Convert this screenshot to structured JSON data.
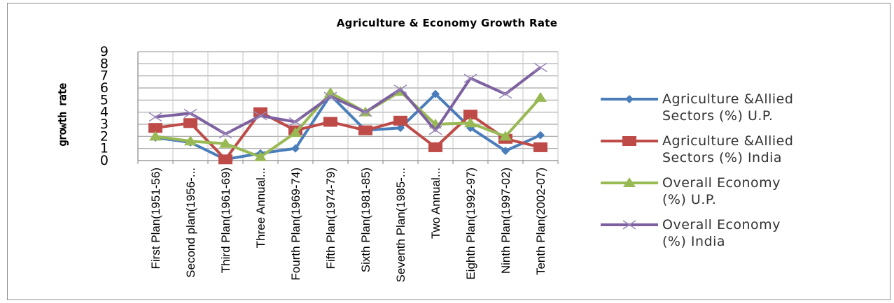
{
  "chart_data": {
    "type": "line",
    "title": "Agriculture & Economy Growth Rate",
    "ylabel": "growth rate",
    "xlabel": "",
    "ylim": [
      0,
      9
    ],
    "yticks": [
      0,
      1,
      2,
      3,
      4,
      5,
      6,
      7,
      8,
      9
    ],
    "grid": true,
    "legend_position": "right",
    "categories": [
      "First Plan(1951-56)",
      "Second plan(1956-...",
      "Third Plan(1961-69)",
      "Three Annual...",
      "Fourth Plan(1969-74)",
      "Fifth Plan(1974-79)",
      "Sixth Plan(1981-85)",
      "Seventh Plan(1985-...",
      "Two Annual...",
      "Eighth Plan(1992-97)",
      "Ninth Plan(1997-02)",
      "Tenth Plan(2002-07)"
    ],
    "series": [
      {
        "name": "Agriculture &Allied Sectors (%) U.P.",
        "legend_lines": [
          "Agriculture &Allied",
          "Sectors (%) U.P."
        ],
        "color": "#4a7ebb",
        "marker": "diamond",
        "values": [
          1.9,
          1.5,
          0.1,
          0.6,
          1.0,
          5.4,
          2.5,
          2.7,
          5.5,
          2.7,
          0.8,
          2.1
        ]
      },
      {
        "name": "Agriculture &Allied Sectors (%) India",
        "legend_lines": [
          "Agriculture &Allied",
          "Sectors (%) India"
        ],
        "color": "#be4b48",
        "marker": "square",
        "values": [
          2.7,
          3.1,
          0.1,
          4.0,
          2.5,
          3.2,
          2.5,
          3.3,
          1.1,
          3.8,
          1.8,
          1.1
        ]
      },
      {
        "name": "Overall Economy (%) U.P.",
        "legend_lines": [
          "Overall Economy",
          "(%) U.P."
        ],
        "color": "#98b954",
        "marker": "triangle",
        "values": [
          2.0,
          1.6,
          1.4,
          0.3,
          2.3,
          5.6,
          4.0,
          5.7,
          3.0,
          3.1,
          2.0,
          5.2
        ]
      },
      {
        "name": "Overall Economy (%) India",
        "legend_lines": [
          "Overall Economy",
          "(%) India"
        ],
        "color": "#7d60a0",
        "marker": "x",
        "values": [
          3.6,
          3.9,
          2.2,
          3.7,
          3.2,
          5.3,
          4.0,
          5.9,
          2.5,
          6.8,
          5.5,
          7.7
        ]
      }
    ]
  }
}
